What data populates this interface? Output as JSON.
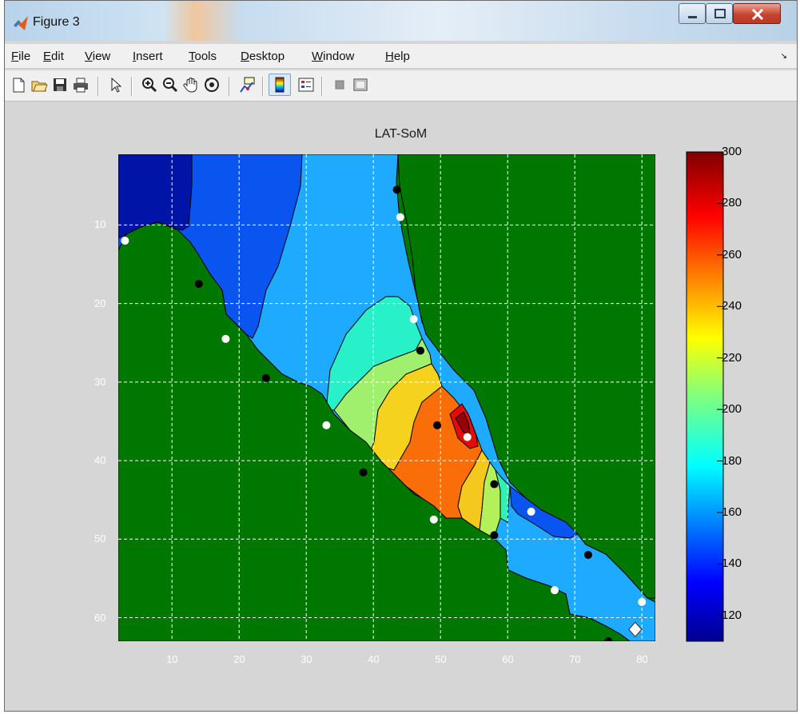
{
  "window": {
    "title": "Figure 3"
  },
  "menu": [
    "File",
    "Edit",
    "View",
    "Insert",
    "Tools",
    "Desktop",
    "Window",
    "Help"
  ],
  "toolbar": [
    "new-figure",
    "open-file",
    "save-figure",
    "print-figure",
    "edit-plot",
    "zoom-in",
    "zoom-out",
    "pan",
    "rotate-3d",
    "data-cursor",
    "insert-colorbar",
    "insert-legend",
    "hide-plot-tools",
    "show-plot-tools"
  ],
  "axes": {
    "title": "LAT-SoM",
    "xticks": [
      "10",
      "20",
      "30",
      "40",
      "50",
      "60",
      "70",
      "80"
    ],
    "yticks": [
      "10",
      "20",
      "30",
      "40",
      "50",
      "60"
    ]
  },
  "colorbar": {
    "ticks": [
      "120",
      "140",
      "160",
      "180",
      "200",
      "220",
      "240",
      "260",
      "280",
      "300"
    ],
    "range": [
      110,
      300
    ]
  },
  "colors": {
    "background_region": "#007800",
    "colormap": "jet"
  },
  "chart_data": {
    "type": "heatmap",
    "title": "LAT-SoM",
    "xlim": [
      2,
      82
    ],
    "ylim": [
      63,
      1
    ],
    "y_reversed": true,
    "grid": true,
    "colorbar_range": [
      110,
      300
    ],
    "masked_color": "green",
    "black_markers": [
      [
        43.5,
        5.5
      ],
      [
        14,
        17.5
      ],
      [
        47,
        26
      ],
      [
        24,
        29.5
      ],
      [
        49.5,
        35.5
      ],
      [
        38.5,
        41.5
      ],
      [
        58,
        43
      ],
      [
        58,
        49.5
      ],
      [
        72,
        52
      ],
      [
        75,
        63
      ]
    ],
    "white_markers": [
      [
        3,
        12
      ],
      [
        44,
        9
      ],
      [
        46,
        22
      ],
      [
        18,
        24.5
      ],
      [
        33,
        35.5
      ],
      [
        54,
        37
      ],
      [
        63.5,
        46.5
      ],
      [
        49,
        47.5
      ],
      [
        67,
        56.5
      ],
      [
        80,
        58
      ],
      [
        79,
        61.5
      ]
    ]
  }
}
